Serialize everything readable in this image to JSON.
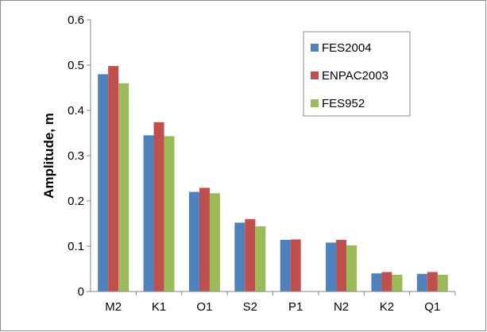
{
  "chart_data": {
    "type": "bar",
    "title": "",
    "xlabel": "",
    "ylabel": "Amplitude, m",
    "ylim": [
      0,
      0.6
    ],
    "yticks": [
      "0",
      "0.1",
      "0.2",
      "0.3",
      "0.4",
      "0.5",
      "0.6"
    ],
    "grid": false,
    "legend_position": "top-right",
    "categories": [
      "M2",
      "K1",
      "O1",
      "S2",
      "P1",
      "N2",
      "K2",
      "Q1"
    ],
    "series": [
      {
        "name": "FES2004",
        "color": "#4f81bd",
        "values": [
          0.48,
          0.345,
          0.22,
          0.152,
          0.114,
          0.108,
          0.04,
          0.039
        ]
      },
      {
        "name": "ENPAC2003",
        "color": "#c0504d",
        "values": [
          0.498,
          0.374,
          0.229,
          0.16,
          0.115,
          0.114,
          0.043,
          0.043
        ]
      },
      {
        "name": "FES952",
        "color": "#9bbb59",
        "values": [
          0.46,
          0.343,
          0.217,
          0.144,
          0.0,
          0.102,
          0.037,
          0.037
        ]
      }
    ]
  }
}
